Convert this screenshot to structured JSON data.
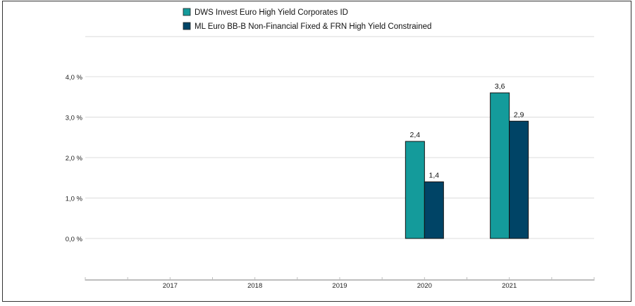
{
  "chart_data": {
    "type": "bar",
    "categories": [
      "2017",
      "2018",
      "2019",
      "2020",
      "2021"
    ],
    "series": [
      {
        "name": "DWS Invest Euro High Yield Corporates  ID",
        "values": [
          null,
          null,
          null,
          2.4,
          3.6
        ],
        "labels": [
          "",
          "",
          "",
          "2,4",
          "3,6"
        ],
        "color": "#149b9b"
      },
      {
        "name": "ML Euro BB-B Non-Financial Fixed & FRN High Yield Constrained",
        "values": [
          null,
          null,
          null,
          1.4,
          2.9
        ],
        "labels": [
          "",
          "",
          "",
          "1,4",
          "2,9"
        ],
        "color": "#004466"
      }
    ],
    "yticks": [
      {
        "value": 0,
        "label": "0,0 %"
      },
      {
        "value": 1,
        "label": "1,0 %"
      },
      {
        "value": 2,
        "label": "2,0 %"
      },
      {
        "value": 3,
        "label": "3,0 %"
      },
      {
        "value": 4,
        "label": "4,0 %"
      }
    ],
    "ylim": [
      -1,
      5
    ],
    "grid": true,
    "legend_position": "top-center",
    "title": "",
    "xlabel": "",
    "ylabel": ""
  }
}
